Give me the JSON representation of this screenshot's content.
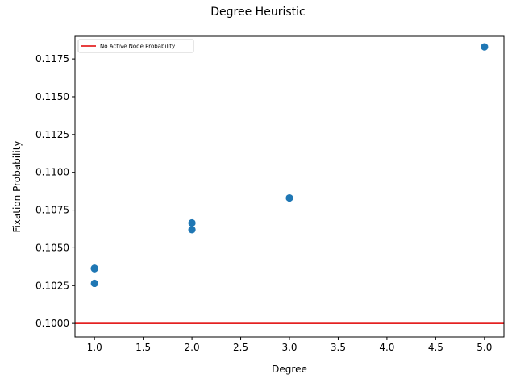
{
  "chart_data": {
    "type": "scatter",
    "title": "Degree Heuristic",
    "xlabel": "Degree",
    "ylabel": "Fixation Probability",
    "xlim": [
      0.8,
      5.2
    ],
    "ylim": [
      0.0991,
      0.119
    ],
    "xticks": [
      1.0,
      1.5,
      2.0,
      2.5,
      3.0,
      3.5,
      4.0,
      4.5,
      5.0
    ],
    "xtick_labels": [
      "1.0",
      "1.5",
      "2.0",
      "2.5",
      "3.0",
      "3.5",
      "4.0",
      "4.5",
      "5.0"
    ],
    "yticks": [
      0.1,
      0.1025,
      0.105,
      0.1075,
      0.11,
      0.1125,
      0.115,
      0.1175
    ],
    "ytick_labels": [
      "0.1000",
      "0.1025",
      "0.1050",
      "0.1075",
      "0.1100",
      "0.1125",
      "0.1150",
      "0.1175"
    ],
    "points": [
      {
        "x": 1.0,
        "y": 0.10365
      },
      {
        "x": 1.0,
        "y": 0.10362
      },
      {
        "x": 1.0,
        "y": 0.10265
      },
      {
        "x": 2.0,
        "y": 0.10665
      },
      {
        "x": 2.0,
        "y": 0.1062
      },
      {
        "x": 3.0,
        "y": 0.1083
      },
      {
        "x": 5.0,
        "y": 0.1183
      }
    ],
    "reference_line": {
      "y": 0.1,
      "label": "No Active Node Probability",
      "color": "#e00000"
    },
    "point_color": "#1f77b4",
    "legend_position": "upper-left",
    "grid": false
  }
}
